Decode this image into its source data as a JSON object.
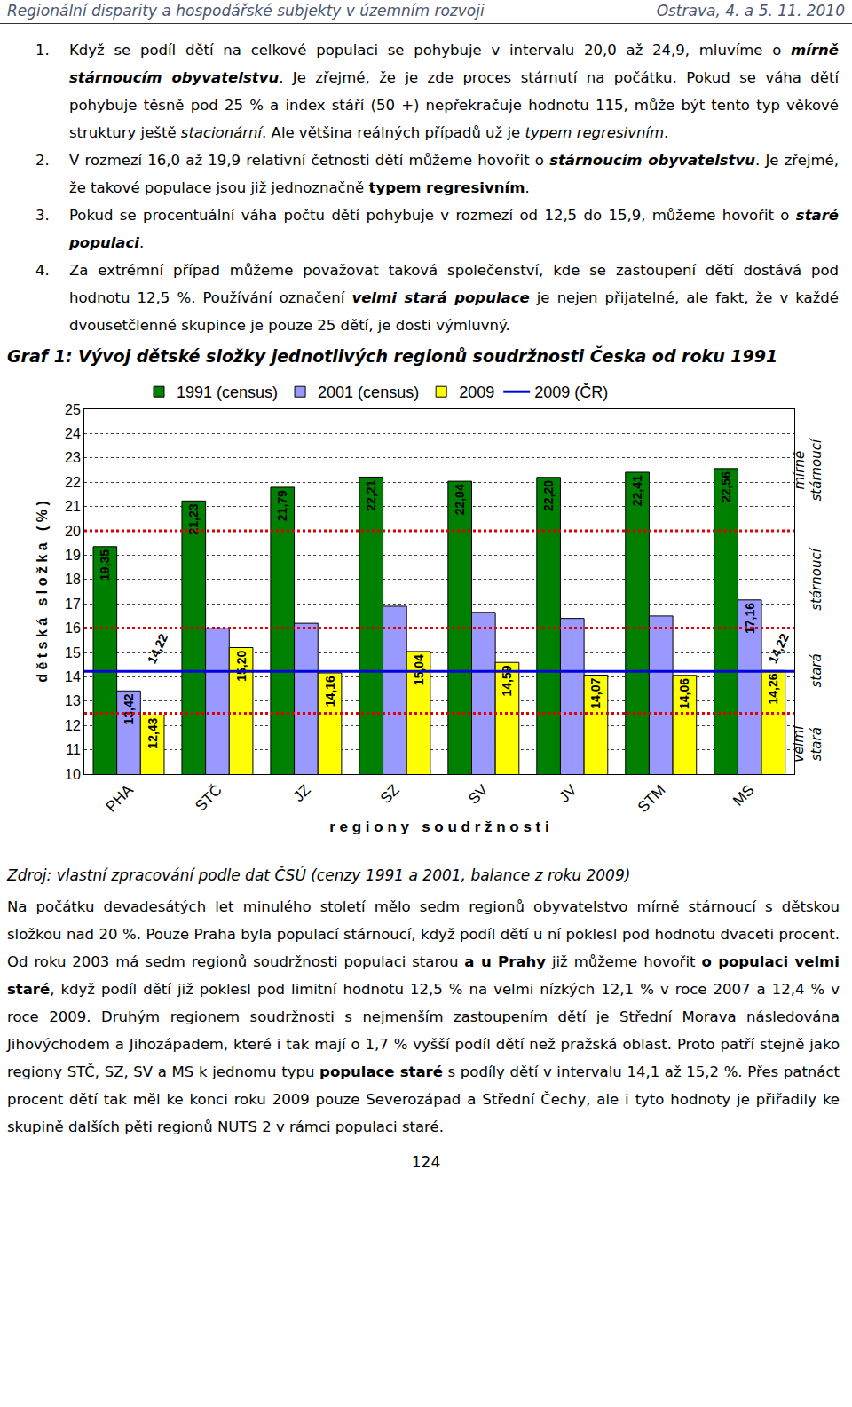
{
  "header": {
    "left": "Regionální disparity a hospodářské subjekty v územním rozvoji",
    "right": "Ostrava, 4. a 5. 11. 2010"
  },
  "list": [
    {
      "number": "1.",
      "runs": [
        {
          "text": "Když se podíl dětí na celkové populaci se pohybuje v intervalu 20,0 až 24,9, mluvíme o "
        },
        {
          "text": "mírně stárnoucím obyvatelstvu",
          "style": "bold-italic"
        },
        {
          "text": ". Je zřejmé, že je zde proces stárnutí na počátku. Pokud se váha dětí pohybuje těsně pod 25 % a index stáří (50 +) nepřekračuje hodnotu 115, může být tento typ věkové struktury ještě "
        },
        {
          "text": "stacionární",
          "style": "italic"
        },
        {
          "text": ". Ale většina reálných případů už je "
        },
        {
          "text": "typem regresivním",
          "style": "italic"
        },
        {
          "text": "."
        }
      ]
    },
    {
      "number": "2.",
      "runs": [
        {
          "text": "V rozmezí 16,0 až 19,9 relativní četnosti dětí můžeme hovořit o "
        },
        {
          "text": "stárnoucím obyvatelstvu",
          "style": "bold-italic"
        },
        {
          "text": ". Je zřejmé, že takové populace jsou již jednoznačně "
        },
        {
          "text": "typem regresivním",
          "style": "bold"
        },
        {
          "text": "."
        }
      ]
    },
    {
      "number": "3.",
      "runs": [
        {
          "text": "Pokud se procentuální váha počtu dětí pohybuje v rozmezí od 12,5 do 15,9, můžeme hovořit o "
        },
        {
          "text": "staré populaci",
          "style": "bold-italic"
        },
        {
          "text": "."
        }
      ]
    },
    {
      "number": "4.",
      "runs": [
        {
          "text": "Za extrémní případ můžeme považovat taková společenství, kde se zastoupení dětí dostává pod hodnotu 12,5 %. Používání označení "
        },
        {
          "text": "velmi stará populace",
          "style": "bold-italic"
        },
        {
          "text": " je nejen přijatelné, ale fakt, že v každé dvousetčlenné skupince je pouze 25 dětí, je dosti výmluvný."
        }
      ]
    }
  ],
  "figure_title": "Graf 1: Vývoj dětské složky jednotlivých regionů soudržnosti Česka od roku 1991",
  "chart_data": {
    "type": "bar",
    "xlabel": "r e g i o n y   s o u d r ž n o s t i",
    "ylabel": "d ě t s k á   s l o ž k a   ( % )",
    "categories": [
      "PHA",
      "STČ",
      "JZ",
      "SZ",
      "SV",
      "JV",
      "STM",
      "MS"
    ],
    "series": [
      {
        "name": "1991 (census)",
        "color": "#008000",
        "values": [
          19.35,
          21.23,
          21.79,
          22.21,
          22.04,
          22.2,
          22.41,
          22.56
        ],
        "value_labels": [
          "19,35",
          "21,23",
          "21,79",
          "22,21",
          "22,04",
          "22,20",
          "22,41",
          "22,56"
        ]
      },
      {
        "name": "2001 (census)",
        "color": "#9999ff",
        "values": [
          13.42,
          16.0,
          16.2,
          16.9,
          16.65,
          16.4,
          16.5,
          17.16
        ],
        "value_labels": [
          "13,42",
          null,
          null,
          null,
          null,
          null,
          null,
          "17,16"
        ]
      },
      {
        "name": "2009",
        "color": "#ffff00",
        "values": [
          12.43,
          15.2,
          14.16,
          15.04,
          14.59,
          14.07,
          14.06,
          14.26
        ],
        "value_labels": [
          "12,43",
          "15,20",
          "14,16",
          "15,04",
          "14,59",
          "14,07",
          "14,06",
          "14,26"
        ]
      }
    ],
    "reference_line": {
      "name": "2009 (ČR)",
      "value": 14.22,
      "label": "14,22",
      "color": "#0000dd",
      "label_at": [
        "PHA",
        "MS"
      ]
    },
    "thresholds": [
      20,
      16,
      12.5
    ],
    "zones": [
      {
        "label": "mírně stárnoucí",
        "from": 20,
        "to": 25
      },
      {
        "label": "stárnoucí",
        "from": 16,
        "to": 20
      },
      {
        "label": "stará",
        "from": 12.5,
        "to": 16
      },
      {
        "label": "velmi stará",
        "from": 10,
        "to": 12.5
      }
    ],
    "ylim": [
      10,
      25
    ],
    "yticks": [
      10,
      11,
      12,
      13,
      14,
      15,
      16,
      17,
      18,
      19,
      20,
      21,
      22,
      23,
      24,
      25
    ],
    "grid": true,
    "legend": "top",
    "data_labels": true
  },
  "source": "Zdroj: vlastní zpracování podle dat ČSÚ (cenzy 1991 a 2001, balance z roku 2009)",
  "paragraph": [
    {
      "text": "Na počátku devadesátých let minulého století mělo sedm regionů obyvatelstvo mírně stárnoucí s dětskou složkou nad 20 %. Pouze Praha byla populací stárnoucí, když podíl dětí u ní poklesl pod hodnotu dvaceti procent. Od roku 2003 má sedm regionů soudržnosti populaci starou "
    },
    {
      "text": "a u Prahy",
      "style": "bold"
    },
    {
      "text": " již můžeme hovořit "
    },
    {
      "text": "o populaci velmi staré",
      "style": "bold"
    },
    {
      "text": ", když podíl dětí již poklesl pod limitní hodnotu 12,5 % na velmi nízkých 12,1 % v roce 2007 a 12,4 % v roce 2009. Druhým regionem soudržnosti s nejmenším zastoupením dětí je Střední Morava následována Jihovýchodem a Jihozápadem, které i tak mají o 1,7 % vyšší podíl dětí než pražská oblast. Proto patří stejně jako regiony STČ, SZ, SV a MS k jednomu typu "
    },
    {
      "text": "populace staré",
      "style": "bold"
    },
    {
      "text": " s podíly dětí v intervalu 14,1 až 15,2 %. Přes patnáct procent dětí tak měl ke konci roku 2009 pouze Severozápad a Střední Čechy, ale i tyto hodnoty je přiřadily ke skupině dalších pěti regionů NUTS 2 v rámci populaci staré."
    }
  ],
  "page_number": "124"
}
